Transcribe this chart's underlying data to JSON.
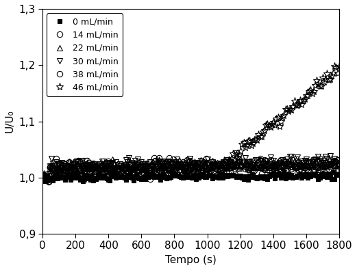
{
  "title": "",
  "xlabel": "Tempo (s)",
  "ylabel": "U/U₀",
  "xlim": [
    0,
    1800
  ],
  "ylim": [
    0.9,
    1.3
  ],
  "yticks": [
    0.9,
    1.0,
    1.1,
    1.2,
    1.3
  ],
  "xticks": [
    0,
    200,
    400,
    600,
    800,
    1000,
    1200,
    1400,
    1600,
    1800
  ],
  "series": [
    {
      "label": "0 mL/min",
      "marker": "s",
      "filled": true,
      "base": 1.0,
      "noise": 0.003,
      "trend": 2e-06,
      "msize": 4
    },
    {
      "label": "14 mL/min",
      "marker": "o",
      "filled": false,
      "base": 1.015,
      "noise": 0.006,
      "trend": 3e-06,
      "msize": 6
    },
    {
      "label": "22 mL/min",
      "marker": "^",
      "filled": false,
      "base": 1.018,
      "noise": 0.005,
      "trend": 3e-06,
      "msize": 6
    },
    {
      "label": "30 mL/min",
      "marker": "v",
      "filled": false,
      "base": 1.022,
      "noise": 0.005,
      "trend": 4e-06,
      "msize": 6
    },
    {
      "label": "38 mL/min",
      "marker": "o",
      "filled": false,
      "base": 1.018,
      "noise": 0.006,
      "trend": 3e-06,
      "msize": 6
    },
    {
      "label": "46 mL/min",
      "marker": "*",
      "filled": false,
      "base": 1.01,
      "noise": 0.006,
      "trend": 5e-06,
      "msize": 8
    }
  ],
  "n_points": 200,
  "background_color": "#ffffff",
  "legend_loc": "upper left",
  "font_size": 11,
  "tick_label_size": 11
}
